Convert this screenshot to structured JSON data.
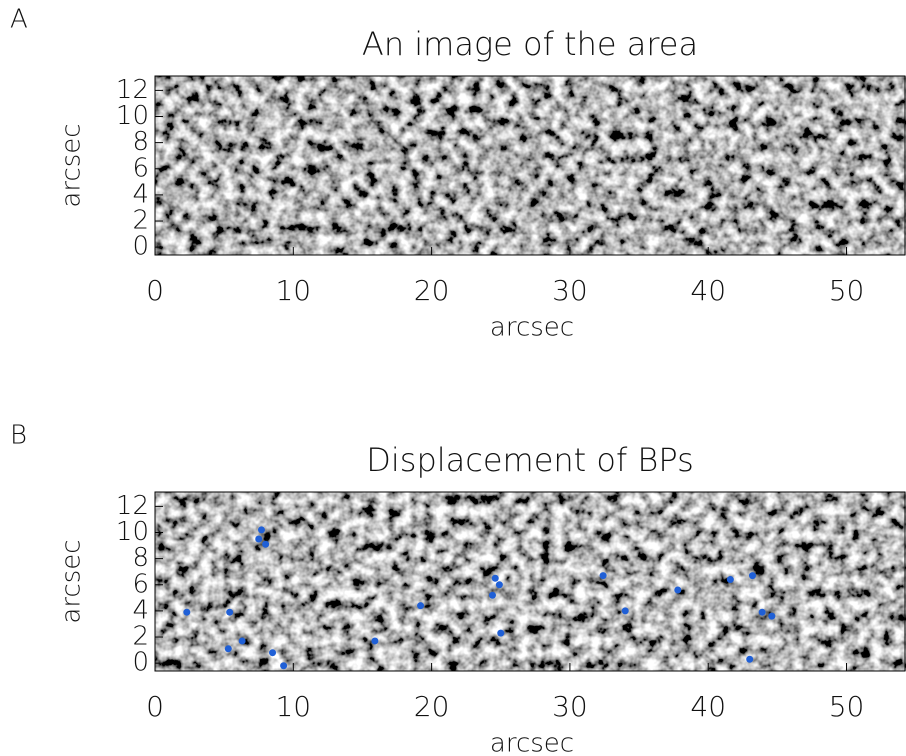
{
  "chart_data": [
    {
      "type": "image",
      "panel_label": "A",
      "title": "An image of the area",
      "x_label": "arcsec",
      "y_label": "arcsec",
      "xlim": [
        0,
        54.3
      ],
      "ylim": [
        -0.6,
        13.1
      ],
      "xticks": [
        0,
        10,
        20,
        30,
        40,
        50
      ],
      "yticks": [
        0,
        2,
        4,
        6,
        8,
        10,
        12
      ]
    },
    {
      "type": "scatter",
      "panel_label": "B",
      "title": "Displacement of BPs",
      "x_label": "arcsec",
      "y_label": "arcsec",
      "xlim": [
        0,
        54.3
      ],
      "ylim": [
        -0.6,
        13.1
      ],
      "xticks": [
        0,
        10,
        20,
        30,
        40,
        50
      ],
      "yticks": [
        0,
        2,
        4,
        6,
        8,
        10,
        12
      ],
      "series": [
        {
          "color": "#1f5fd6",
          "x": [
            7.5,
            7.7,
            8.0,
            24.6,
            24.4,
            24.9,
            32.4,
            34.0,
            37.8,
            41.6,
            43.2,
            43.9,
            44.6,
            15.9,
            5.3,
            6.3,
            5.4,
            8.5,
            9.3,
            43.0,
            19.2,
            2.3,
            25.0
          ],
          "values": [
            9.5,
            10.2,
            9.1,
            6.5,
            5.2,
            6.0,
            6.7,
            4.0,
            5.6,
            6.4,
            6.7,
            3.9,
            3.6,
            1.7,
            1.1,
            1.7,
            3.9,
            0.8,
            -0.2,
            0.3,
            4.4,
            3.9,
            2.3
          ]
        }
      ]
    }
  ]
}
